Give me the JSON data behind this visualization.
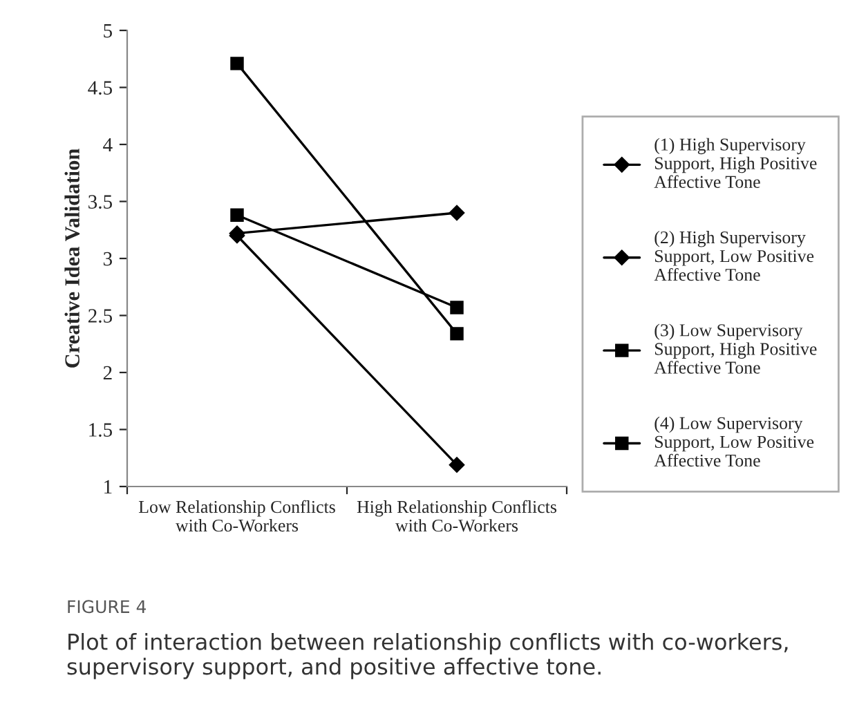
{
  "chart_data": {
    "type": "line",
    "ylabel": "Creative Idea Validation",
    "categories": [
      "Low Relationship Conflicts\nwith Co-Workers",
      "High Relationship Conflicts\nwith Co-Workers"
    ],
    "series": [
      {
        "name": "(1) High Supervisory\nSupport, High Positive\nAffective Tone",
        "color": "#000000",
        "marker": "diamond",
        "values": [
          3.22,
          3.4
        ]
      },
      {
        "name": "(2) High Supervisory\nSupport, Low Positive\nAffective Tone",
        "color": "#000000",
        "marker": "diamond",
        "values": [
          3.2,
          1.19
        ]
      },
      {
        "name": "(3) Low Supervisory\nSupport, High Positive\nAffective Tone",
        "color": "#000000",
        "marker": "square",
        "values": [
          4.71,
          2.34
        ]
      },
      {
        "name": "(4) Low Supervisory\nSupport, Low Positive\nAffective Tone",
        "color": "#000000",
        "marker": "square",
        "values": [
          3.38,
          2.57
        ]
      }
    ],
    "ylim": [
      1,
      5
    ],
    "yticks": [
      1,
      1.5,
      2,
      2.5,
      3,
      3.5,
      4,
      4.5,
      5
    ],
    "grid": false,
    "legend": "right",
    "line_style": "solid",
    "annotations": [
      "FIGURE 4",
      "Plot of interaction between relationship conflicts with co-workers, supervisory support, and positive affective tone."
    ]
  }
}
